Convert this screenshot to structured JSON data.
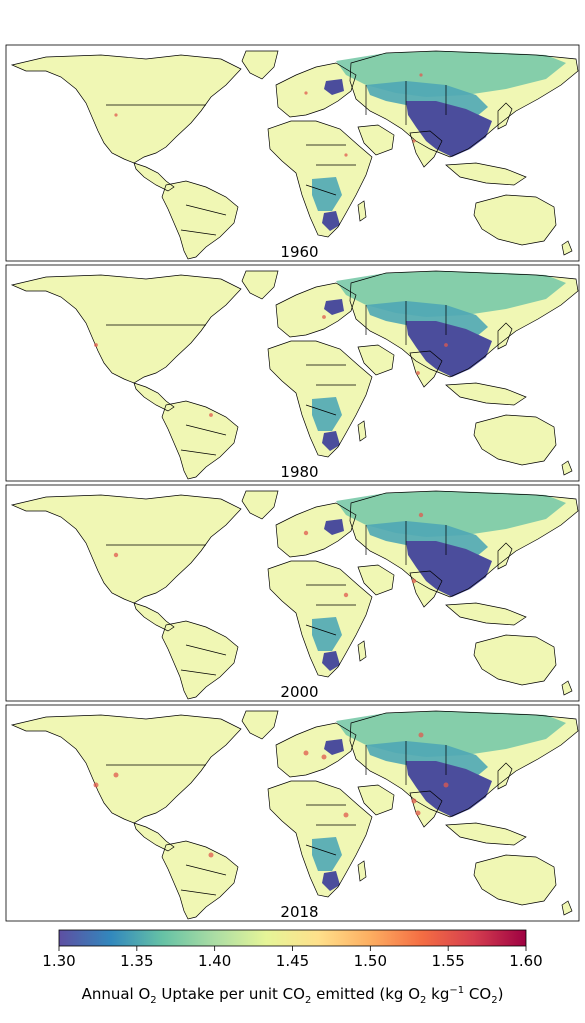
{
  "chart_data": {
    "type": "heatmap",
    "panels": [
      {
        "label": "1960"
      },
      {
        "label": "1980"
      },
      {
        "label": "2000"
      },
      {
        "label": "2018"
      }
    ],
    "colorbar": {
      "min": 1.3,
      "max": 1.6,
      "ticks": [
        "1.30",
        "1.35",
        "1.40",
        "1.45",
        "1.50",
        "1.55",
        "1.60"
      ],
      "colormap": [
        "#5e4fa2",
        "#3288bd",
        "#66c2a5",
        "#abdda4",
        "#e6f598",
        "#fee08b",
        "#fdae61",
        "#f46d43",
        "#d53e4f",
        "#9e0142"
      ],
      "label_parts": {
        "a": "Annual O",
        "b": "2",
        "c": " Uptake per unit CO",
        "d": "2",
        "e": " emitted (kg O",
        "f": "2",
        "g": " kg",
        "h": "−1",
        "i": " CO",
        "j": "2",
        "k": ")"
      }
    },
    "colors": {
      "land_base": "#f0f7b4",
      "ocean": "#ffffff",
      "border": "#000000",
      "low_region": "#4b4d9c",
      "mid_region": "#4fa7b5",
      "teal_region": "#79c9a8",
      "high_spot": "#e05a4e"
    }
  }
}
